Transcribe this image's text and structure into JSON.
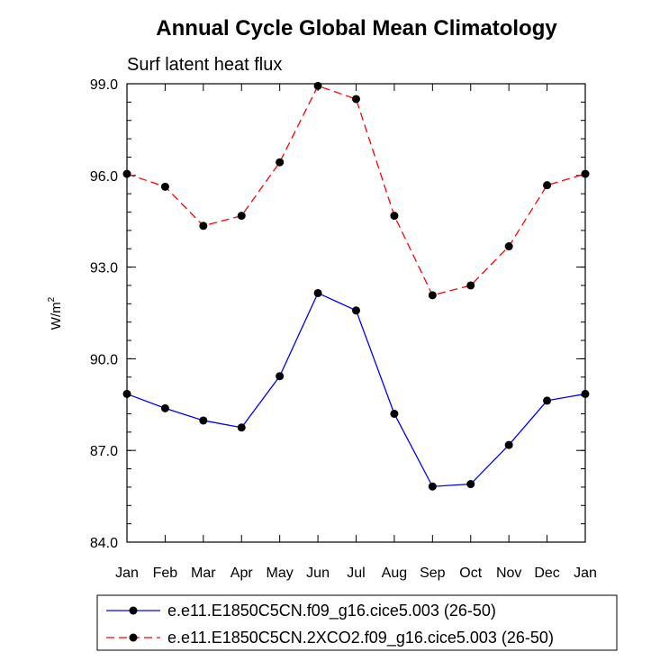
{
  "chart_data": {
    "type": "line",
    "title": "Annual Cycle Global Mean Climatology",
    "subtitle": "Surf latent heat flux",
    "ylabel_base": "W/m",
    "ylabel_sup": "2",
    "xlabel": "",
    "categories": [
      "Jan",
      "Feb",
      "Mar",
      "Apr",
      "May",
      "Jun",
      "Jul",
      "Aug",
      "Sep",
      "Oct",
      "Nov",
      "Dec",
      "Jan"
    ],
    "ylim": [
      84.0,
      99.0
    ],
    "yticks": [
      84.0,
      87.0,
      90.0,
      93.0,
      96.0,
      99.0
    ],
    "ytick_labels": [
      "84.0",
      "87.0",
      "90.0",
      "93.0",
      "96.0",
      "99.0"
    ],
    "series": [
      {
        "name": "e.e11.E1850C5CN.f09_g16.cice5.003 (26-50)",
        "color": "#0000ff",
        "dash": "solid",
        "values": [
          88.85,
          88.38,
          87.98,
          87.75,
          89.43,
          92.15,
          91.58,
          88.2,
          85.82,
          85.9,
          87.18,
          88.63,
          88.85
        ]
      },
      {
        "name": "e.e11.E1850C5CN.2XCO2.f09_g16.cice5.003 (26-50)",
        "color": "#ff0000",
        "dash": "dashed",
        "values": [
          96.05,
          95.63,
          94.35,
          94.68,
          96.43,
          98.93,
          98.5,
          94.68,
          92.08,
          92.4,
          93.68,
          95.68,
          96.05
        ]
      }
    ]
  }
}
